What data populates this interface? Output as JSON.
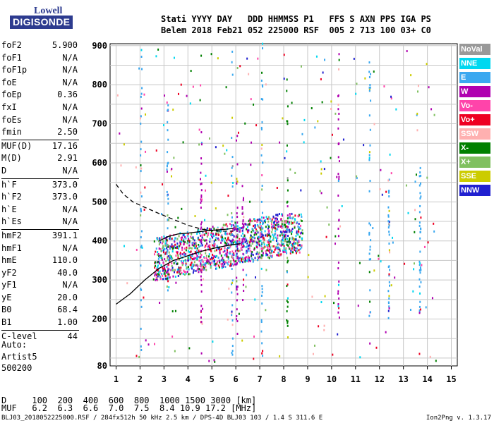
{
  "logo": {
    "line1": "Lowell",
    "line2": "DIGISONDE"
  },
  "header": {
    "line1": "Stati YYYY DAY   DDD HHMMSS P1   FFS S AXN PPS IGA PS",
    "line2": "Belem 2018 Feb21 052 225000 RSF  005 2 713 100 03+ C0"
  },
  "params": [
    {
      "k": "foF2",
      "v": "5.900"
    },
    {
      "k": "foF1",
      "v": "N/A"
    },
    {
      "k": "foF1p",
      "v": "N/A"
    },
    {
      "k": "foE",
      "v": "N/A"
    },
    {
      "k": "foEp",
      "v": "0.36"
    },
    {
      "k": "fxI",
      "v": "N/A"
    },
    {
      "k": "foEs",
      "v": "N/A"
    },
    {
      "k": "fmin",
      "v": "2.50"
    },
    {
      "k": "MUF(D)",
      "v": "17.16",
      "sep": true
    },
    {
      "k": "M(D)",
      "v": "2.91"
    },
    {
      "k": "D",
      "v": "N/A"
    },
    {
      "k": "h`F",
      "v": "373.0",
      "sep": true
    },
    {
      "k": "h`F2",
      "v": "373.0"
    },
    {
      "k": "h`E",
      "v": "N/A"
    },
    {
      "k": "h`Es",
      "v": "N/A"
    },
    {
      "k": "hmF2",
      "v": "391.1",
      "sep": true
    },
    {
      "k": "hmF1",
      "v": "N/A"
    },
    {
      "k": "hmE",
      "v": "110.0"
    },
    {
      "k": "yF2",
      "v": "40.0"
    },
    {
      "k": "yF1",
      "v": "N/A"
    },
    {
      "k": "yE",
      "v": "20.0"
    },
    {
      "k": "B0",
      "v": "68.4"
    },
    {
      "k": "B1",
      "v": "1.00"
    },
    {
      "k": "C-level",
      "v": "44",
      "sep": true
    }
  ],
  "auto": {
    "line1": "Auto:",
    "line2": "Artist5",
    "line3": "500200"
  },
  "legend": [
    {
      "label": "NoVal",
      "color": "#999999"
    },
    {
      "label": "NNE",
      "color": "#00d8f0"
    },
    {
      "label": "E",
      "color": "#3aa8f0"
    },
    {
      "label": "W",
      "color": "#b000b0"
    },
    {
      "label": "Vo-",
      "color": "#ff44aa"
    },
    {
      "label": "Vo+",
      "color": "#ee0022"
    },
    {
      "label": "SSW",
      "color": "#ffb0b0"
    },
    {
      "label": "X-",
      "color": "#008000"
    },
    {
      "label": "X+",
      "color": "#80c060"
    },
    {
      "label": "SSE",
      "color": "#cccc00"
    },
    {
      "label": "NNW",
      "color": "#2020d0"
    }
  ],
  "bottom": {
    "d_line": "D     100  200  400  600  800  1000 1500 3000 [km]",
    "muf_line": "MUF   6.2  6.3  6.6  7.0  7.5  8.4 10.9 17.2 [MHz]",
    "footer": "BLJ03_2018052225000.RSF / 284fx512h 50 kHz 2.5 km / DPS-4D BLJ03 103 / 1.4 S 311.6 E",
    "version": "Ion2Png v. 1.3.17"
  },
  "chart_data": {
    "type": "scatter",
    "title": "",
    "xlabel": "",
    "ylabel": "",
    "xlim": [
      0.75,
      15.25
    ],
    "ylim": [
      80,
      905
    ],
    "x_ticks": [
      "1",
      "2",
      "3",
      "4",
      "5",
      "6",
      "7",
      "8",
      "9",
      "10",
      "11",
      "12",
      "13",
      "14",
      "15"
    ],
    "y_ticks": [
      "80",
      "200",
      "300",
      "400",
      "500",
      "600",
      "700",
      "800",
      "900"
    ],
    "profile_curve": {
      "x": [
        1,
        1.6,
        2.2,
        2.8,
        3.4,
        4,
        4.6,
        5.2,
        5.8,
        6.2
      ],
      "y": [
        238,
        265,
        300,
        330,
        350,
        362,
        374,
        383,
        390,
        393
      ]
    },
    "upper_curve": {
      "x": [
        2.8,
        3.2,
        3.6,
        4.0,
        4.4,
        4.8,
        5.2,
        5.6,
        5.9
      ],
      "y": [
        400,
        412,
        418,
        420,
        423,
        426,
        428,
        430,
        432
      ]
    },
    "dashed_curve": {
      "x": [
        1,
        1.3,
        1.7,
        2.2,
        2.8,
        3.4,
        4.0,
        4.6,
        5.2,
        5.9
      ],
      "y": [
        545,
        520,
        500,
        486,
        470,
        455,
        440,
        430,
        425,
        425
      ]
    }
  }
}
